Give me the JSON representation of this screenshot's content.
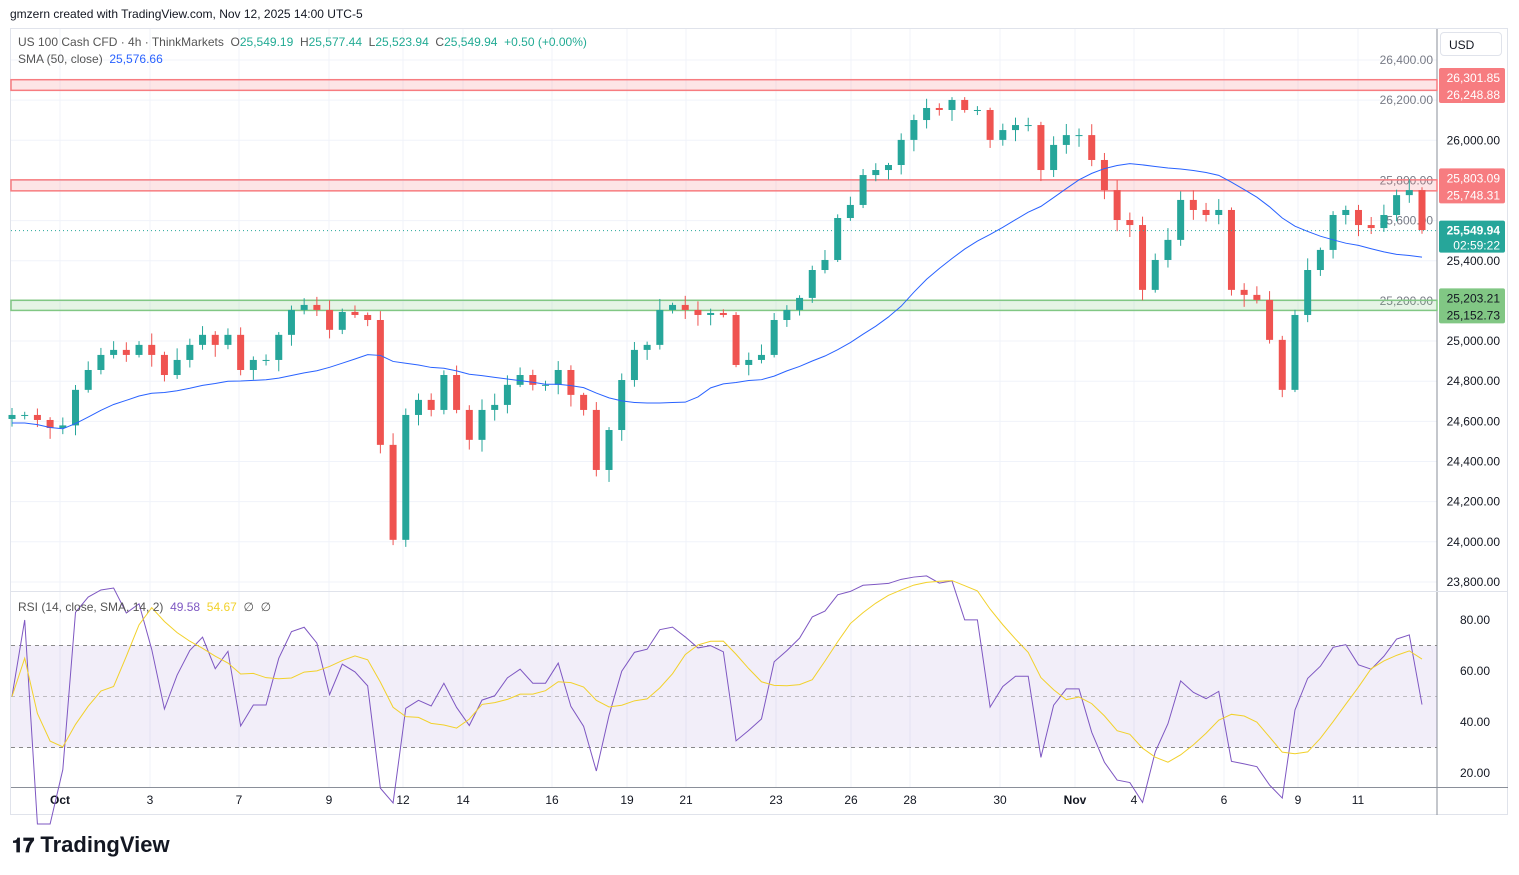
{
  "credit": "gmzern created with TradingView.com, Nov 12, 2025 14:00 UTC-5",
  "legend": {
    "symbol": "US 100 Cash CFD · 4h · ThinkMarkets",
    "o_label": "O",
    "o": "25,549.19",
    "h_label": "H",
    "h": "25,577.44",
    "l_label": "L",
    "l": "25,523.94",
    "c_label": "C",
    "c": "25,549.94",
    "change": "+0.50 (+0.00%)",
    "sma_label": "SMA (50, close)",
    "sma_value": "25,576.66",
    "rsi_label": "RSI (14, close, SMA, 14, 2)",
    "rsi_value": "49.58",
    "rsi_sma_value": "54.67",
    "rsi_extra1": "∅",
    "rsi_extra2": "∅"
  },
  "currency": "USD",
  "logo": "TradingView",
  "countdown": "02:59:22",
  "colors": {
    "up": "#26a69a",
    "down": "#ef5350",
    "sma": "#2962ff",
    "rsi": "#7e57c2",
    "rsi_sma": "#f2d12b",
    "resistance": "#f77c80",
    "support": "#81c784"
  },
  "chart_data": {
    "type": "candlestick",
    "ylim": [
      23800,
      26400
    ],
    "y_ticks": [
      "26,400.00",
      "26,200.00",
      "26,000.00",
      "25,800.00",
      "25,600.00",
      "25,400.00",
      "25,200.00",
      "25,000.00",
      "24,800.00",
      "24,600.00",
      "24,400.00",
      "24,200.00",
      "24,000.00",
      "23,800.00"
    ],
    "x_ticks": [
      "Oct",
      "3",
      "7",
      "9",
      "12",
      "14",
      "16",
      "19",
      "21",
      "23",
      "26",
      "28",
      "30",
      "Nov",
      "4",
      "6",
      "9",
      "11"
    ],
    "closes": [
      24632,
      24632,
      24607,
      24567,
      24580,
      24757,
      24856,
      24931,
      24956,
      24931,
      24981,
      24931,
      24831,
      24906,
      24981,
      25031,
      24981,
      25031,
      24856,
      24906,
      24906,
      25031,
      25155,
      25180,
      25155,
      25056,
      25145,
      25130,
      25105,
      24483,
      24010,
      24632,
      24707,
      24657,
      24831,
      24657,
      24508,
      24657,
      24682,
      24782,
      24831,
      24782,
      24782,
      24856,
      24732,
      24657,
      24358,
      24557,
      24806,
      24956,
      24981,
      25155,
      25180,
      25155,
      25130,
      25140,
      25130,
      24881,
      24906,
      24931,
      25105,
      25155,
      25215,
      25354,
      25404,
      25613,
      25678,
      25827,
      25852,
      25877,
      26002,
      26101,
      26161,
      26151,
      26201,
      26151,
      26151,
      26002,
      26051,
      26076,
      26076,
      25852,
      25977,
      26026,
      26026,
      25902,
      25752,
      25603,
      25578,
      25255,
      25404,
      25504,
      25703,
      25653,
      25628,
      25653,
      25255,
      25230,
      25205,
      25006,
      24757,
      25130,
      25354,
      25454,
      25628,
      25653,
      25578,
      25563,
      25628,
      25727,
      25752,
      25553
    ],
    "zones": [
      {
        "top": 26301.85,
        "bottom": 26248.88,
        "top_label": "26,301.85",
        "bottom_label": "26,248.88",
        "kind": "resistance"
      },
      {
        "top": 25803.09,
        "bottom": 25748.31,
        "top_label": "25,803.09",
        "bottom_label": "25,748.31",
        "kind": "resistance"
      },
      {
        "top": 25203.21,
        "bottom": 25152.73,
        "top_label": "25,203.21",
        "bottom_label": "25,152.73",
        "kind": "support"
      }
    ],
    "last_price": 25549.94,
    "last_price_label": "25,549.94",
    "rsi": {
      "ylim": [
        10,
        90
      ],
      "levels": [
        70,
        50,
        30
      ],
      "y_ticks": [
        "80.00",
        "60.00",
        "40.00",
        "20.00"
      ]
    }
  }
}
